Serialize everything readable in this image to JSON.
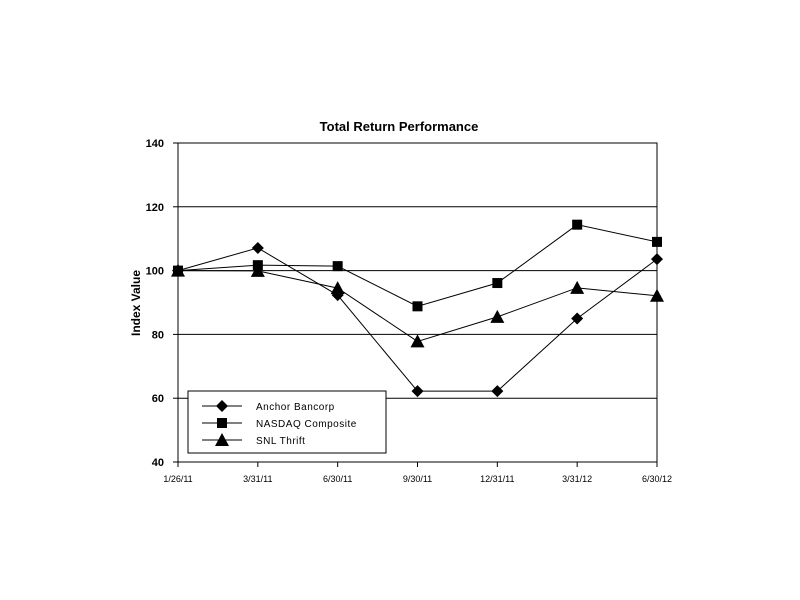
{
  "chart_data": {
    "type": "line",
    "title": "Total Return Performance",
    "xlabel": "",
    "ylabel": "Index Value",
    "categories": [
      "1/26/11",
      "3/31/11",
      "6/30/11",
      "9/30/11",
      "12/31/11",
      "3/31/12",
      "6/30/12"
    ],
    "ylim": [
      40,
      140
    ],
    "yticks": [
      40,
      60,
      80,
      100,
      120,
      140
    ],
    "grid": "horizontal",
    "legend_position": "bottom-left",
    "series": [
      {
        "name": "Anchor Bancorp",
        "marker": "diamond",
        "values": [
          100.0,
          107.1,
          92.3,
          62.2,
          62.2,
          85.0,
          103.6
        ]
      },
      {
        "name": "NASDAQ Composite",
        "marker": "square",
        "values": [
          100.0,
          101.7,
          101.4,
          88.8,
          96.1,
          114.4,
          109.0
        ]
      },
      {
        "name": "SNL Thrift",
        "marker": "triangle",
        "values": [
          100.0,
          99.9,
          94.5,
          77.8,
          85.5,
          94.6,
          92.1
        ]
      }
    ],
    "colors": {
      "line": "#000000",
      "marker": "#000000",
      "grid": "#000000",
      "background": "#ffffff"
    }
  }
}
